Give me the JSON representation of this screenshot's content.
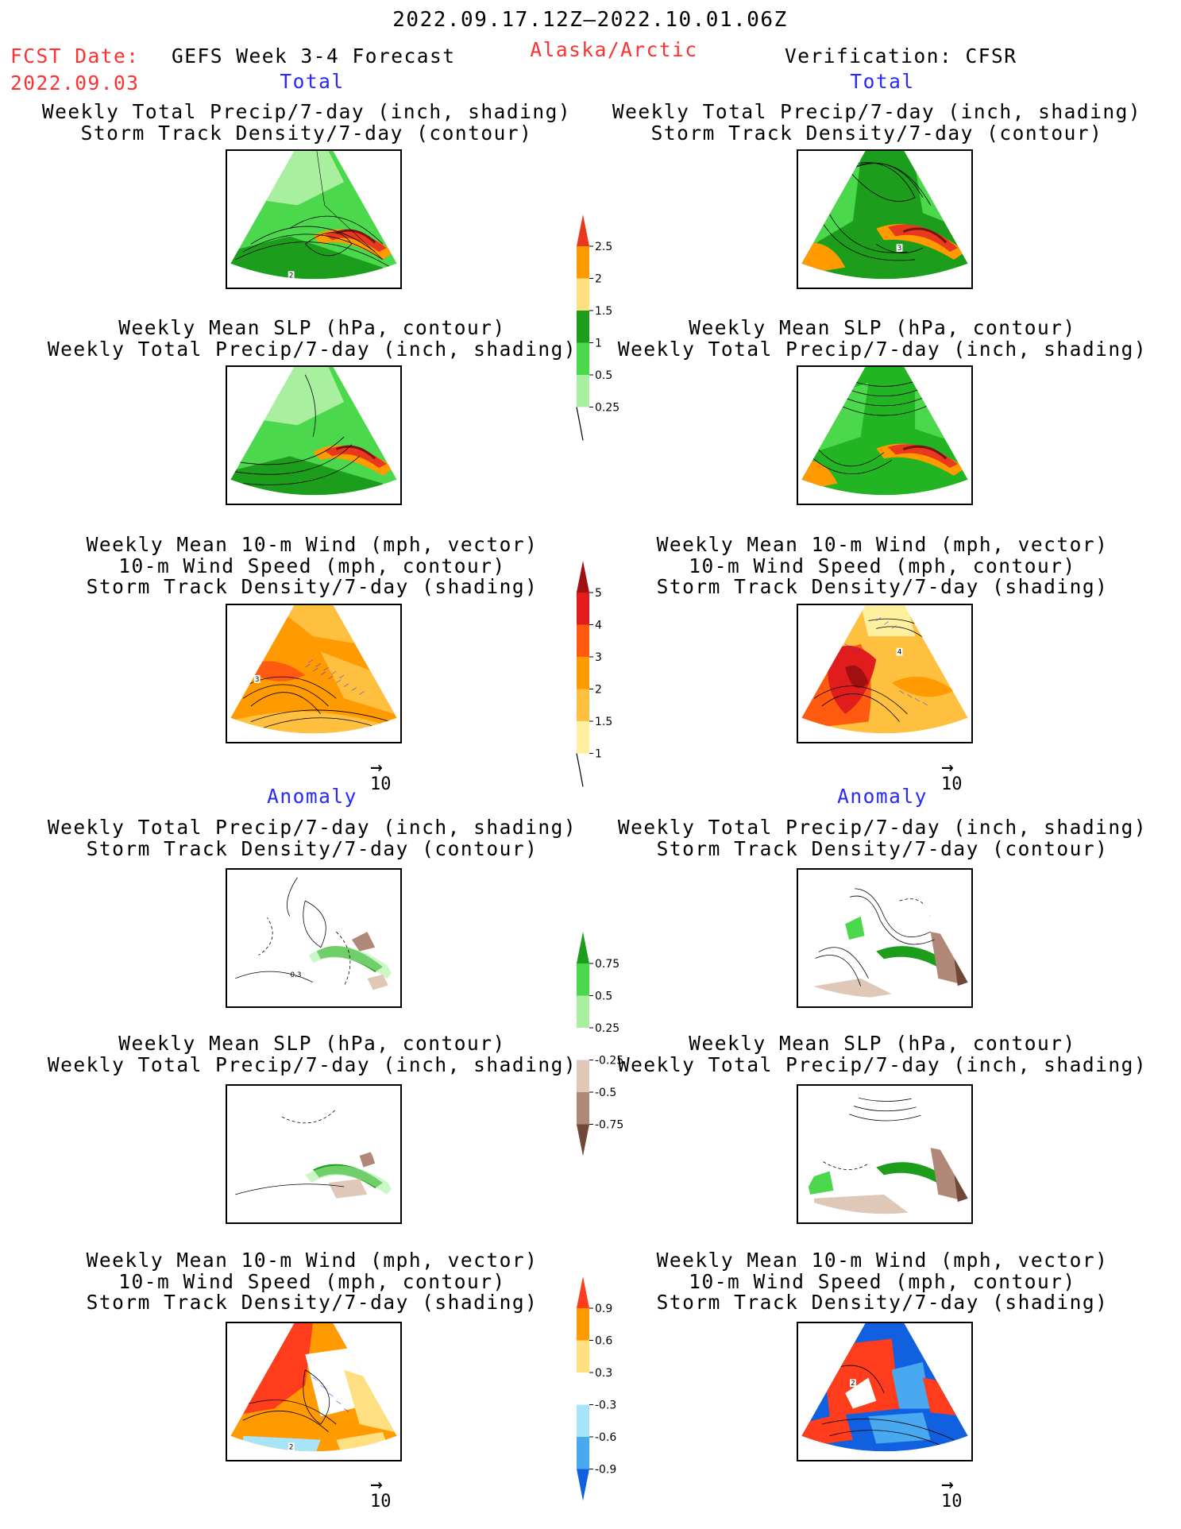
{
  "header": {
    "period": "2022.09.17.12Z–2022.10.01.06Z",
    "fcst_label": "FCST Date:",
    "fcst_date": "2022.09.03",
    "product": "GEFS Week 3-4 Forecast",
    "region": "Alaska/Arctic",
    "verification": "Verification: CFSR"
  },
  "sections": {
    "total_left": "Total",
    "total_right": "Total",
    "anomaly_left": "Anomaly",
    "anomaly_right": "Anomaly"
  },
  "panel_titles": {
    "precip_storm": "Weekly Total Precip/7-day (inch, shading)\nStorm Track Density/7-day (contour)",
    "slp_precip": "Weekly Mean SLP (hPa, contour)\nWeekly Total Precip/7-day (inch, shading)",
    "wind_storm": "Weekly Mean 10-m Wind (mph, vector)\n10-m Wind Speed (mph, contour)\nStorm Track Density/7-day (shading)"
  },
  "vector_reference": "10",
  "colorbars": {
    "precip_total": {
      "labels": [
        "2.5",
        "2",
        "1.5",
        "1",
        "0.5",
        "0.25"
      ],
      "colors": [
        "#e8381e",
        "#ff9a00",
        "#ffe080",
        "#1c9e1c",
        "#4cd84c",
        "#a8f0a0"
      ]
    },
    "storm_total": {
      "labels": [
        "5",
        "4",
        "3",
        "2",
        "1.5",
        "1"
      ],
      "colors": [
        "#a01010",
        "#e01c1c",
        "#ff5a10",
        "#ff9a00",
        "#ffc040",
        "#fff0a0"
      ]
    },
    "precip_anom": {
      "labels": [
        "0.75",
        "0.5",
        "0.25",
        "-0.25",
        "-0.5",
        "-0.75"
      ],
      "colors": [
        "#1c9e1c",
        "#4cd84c",
        "#a8f0a0",
        "#ffffff",
        "#e0c8b8",
        "#b08878",
        "#704838"
      ]
    },
    "storm_anom": {
      "labels": [
        "0.9",
        "0.6",
        "0.3",
        "-0.3",
        "-0.6",
        "-0.9"
      ],
      "colors": [
        "#ff3c1c",
        "#ff9a00",
        "#ffe080",
        "#ffffff",
        "#a8e4f8",
        "#48a8f0",
        "#1060e0"
      ]
    }
  },
  "contour_labels": {
    "left_precip_storm": "2",
    "right_precip_storm": "3",
    "left_wind_storm": "3",
    "right_wind_storm": "4",
    "left_anom_precip": "0.3",
    "left_anom_wind": "2",
    "right_anom_wind": "2"
  },
  "colors": {
    "total_green": "#22b422",
    "light_green": "#a8f0a0",
    "orange": "#ff9a00",
    "red": "#e01c1c"
  }
}
